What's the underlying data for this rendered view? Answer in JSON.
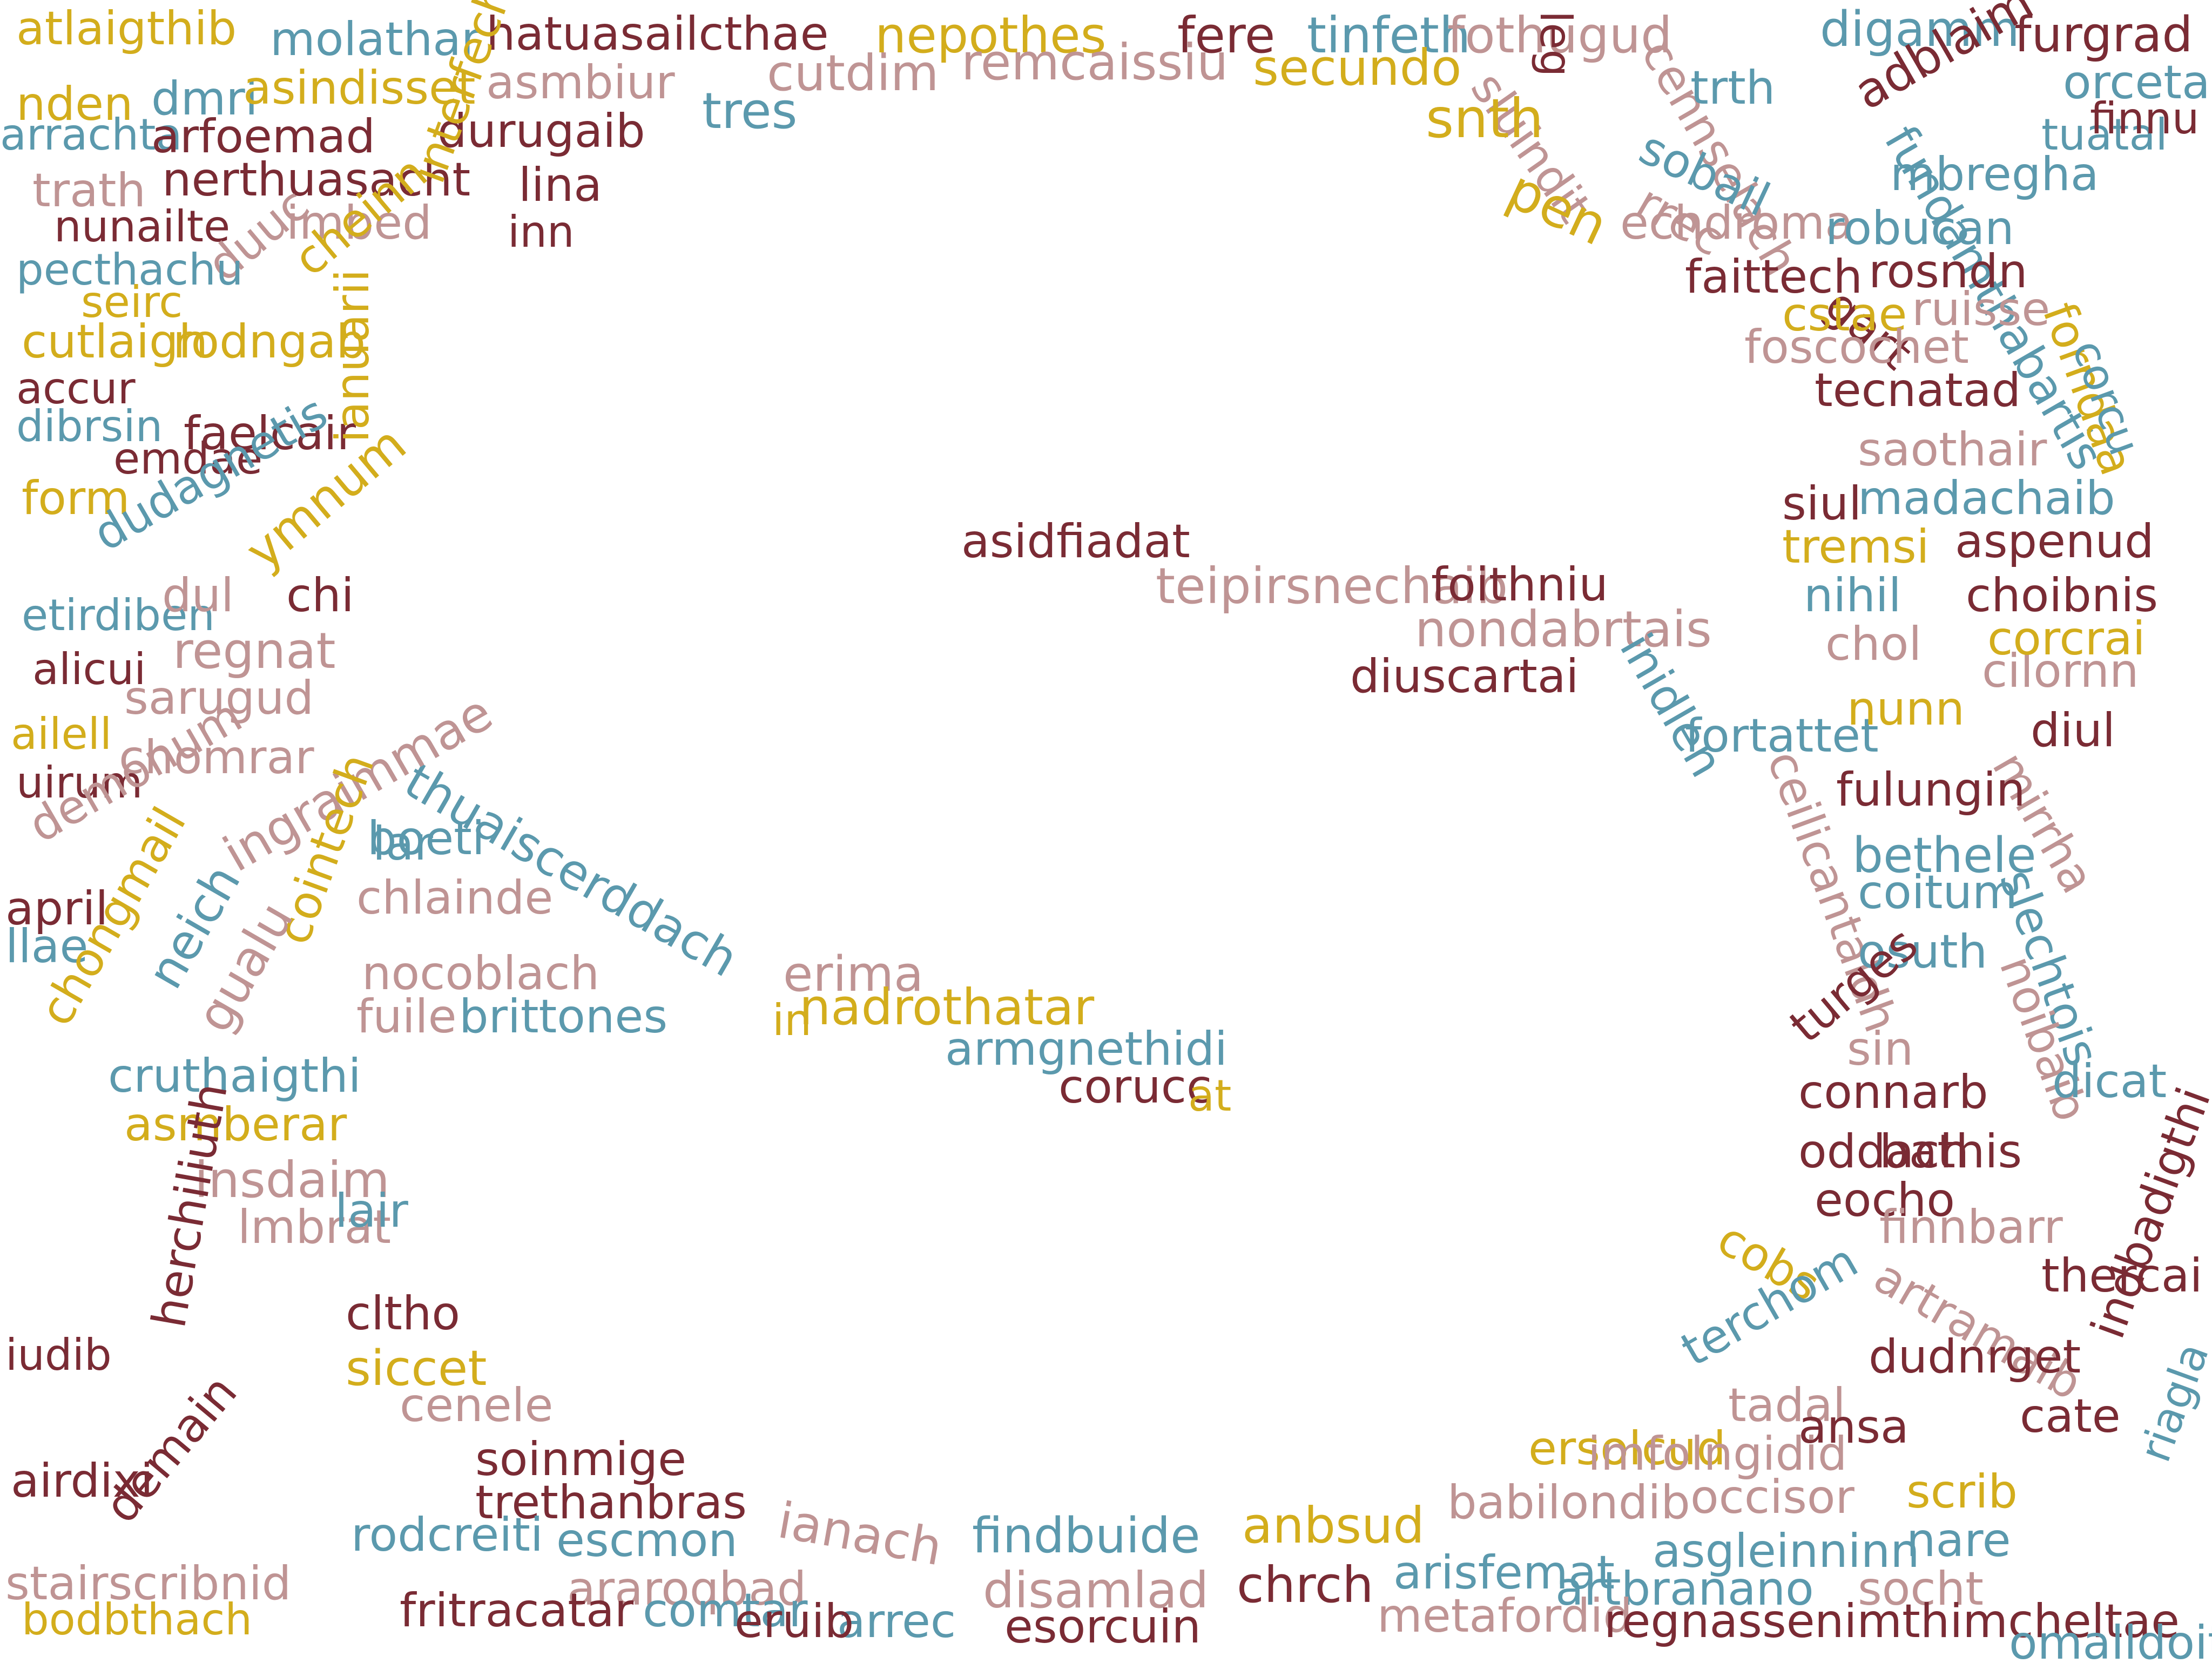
{
  "palette": {
    "maroon": "#7a2b34",
    "teal": "#5b99ad",
    "gold": "#d3ad1c",
    "rose": "#bf9494"
  },
  "words": [
    "atlaigthib",
    "molathar",
    "hatuasailcthae",
    "nepothes",
    "fere",
    "tinfeth",
    "fothugud",
    "leg",
    "digamm",
    "furgrad",
    "nden",
    "dmri",
    "asindisset",
    "asmbiur",
    "cutdim",
    "remcaissiu",
    "secundo",
    "sluindit",
    "cennselach",
    "adblaim",
    "orcetail",
    "arrachta",
    "arfoemad",
    "durugaib",
    "tres",
    "snth",
    "trth",
    "sobail",
    "fundamthabartis",
    "tuatal",
    "finnu",
    "trath",
    "nerthuasacht",
    "lina",
    "pen",
    "echdroma",
    "mbregha",
    "robucan",
    "rosndn",
    "nunailte",
    "imbed",
    "duuc",
    "cheinn",
    "inn",
    "rrec",
    "faittech",
    "gart",
    "cstae",
    "ruisse",
    "pecthachu",
    "seirc",
    "cutlaigh",
    "rodngab",
    "interfechtus",
    "foscochet",
    "forndaa",
    "corcu",
    "tecnatad",
    "accur",
    "dibrsin",
    "faelcair",
    "emdae",
    "saothair",
    "siul",
    "madachaib",
    "tremsi",
    "aspenud",
    "form",
    "dudagnetis",
    "ymnum",
    "ianuarii",
    "asidfiadat",
    "teipirsnechaib",
    "foithniu",
    "nihil",
    "choibnis",
    "etirdiben",
    "dul",
    "chi",
    "regnat",
    "nondabrtais",
    "inidlen",
    "chol",
    "cilornn",
    "alicui",
    "diuscartai",
    "corcrai",
    "sarugud",
    "fortattet",
    "nunn",
    "diul",
    "ailell",
    "chomrar",
    "thuaiscerddach",
    "ceilicantaidh",
    "mirrha",
    "fulungin",
    "uirum",
    "demonum",
    "ingraimmae",
    "boeti",
    "lar",
    "bethele",
    "coitum",
    "slechtois",
    "april",
    "cointech",
    "chlainde",
    "nocoblach",
    "erima",
    "fuile",
    "brittones",
    "nadrothatar",
    "in",
    "armgnethidi",
    "corucc",
    "at",
    "osuth",
    "noibaib",
    "llae",
    "chongmail",
    "neich",
    "gualu",
    "cruthaigthi",
    "turges",
    "sin",
    "connarb",
    "dicat",
    "asmberar",
    "insdaim",
    "oddach",
    "bathis",
    "lmbrat",
    "lair",
    "eocho",
    "finnbarr",
    "herchiliuth",
    "cobs",
    "artramaib",
    "thercai",
    "cltho",
    "iudib",
    "siccet",
    "cenele",
    "terchom",
    "dudnrget",
    "indbadigthi",
    "tadal",
    "ansa",
    "cate",
    "airdixi",
    "demain",
    "soinmige",
    "ersolcud",
    "imfolngidid",
    "riagla",
    "trethanbras",
    "babilondib",
    "occisor",
    "rodcreiti",
    "escmon",
    "ianach",
    "findbuide",
    "anbsud",
    "arisfemat",
    "asgleinninn",
    "nare",
    "scrib",
    "stairscribnid",
    "araroqbad",
    "disamlad",
    "chrch",
    "artbranano",
    "socht",
    "bodbthach",
    "fritracatar",
    "comtar",
    "arrec",
    "eruib",
    "metafordid",
    "regnasse",
    "nimthimcheltae",
    "esorcuin",
    "omalldoit"
  ]
}
